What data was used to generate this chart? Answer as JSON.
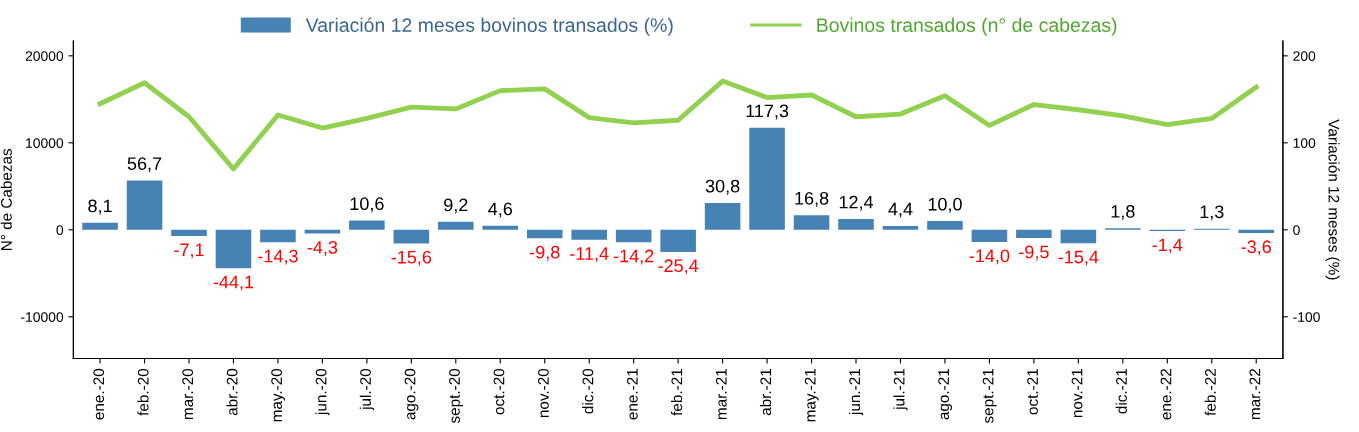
{
  "chart_data": {
    "type": "bar",
    "categories": [
      "ene.-20",
      "feb.-20",
      "mar.-20",
      "abr.-20",
      "may.-20",
      "jun.-20",
      "jul.-20",
      "ago.-20",
      "sept.-20",
      "oct.-20",
      "nov.-20",
      "dic.-20",
      "ene.-21",
      "feb.-21",
      "mar.-21",
      "abr.-21",
      "may.-21",
      "jun.-21",
      "jul.-21",
      "ago.-21",
      "sept.-21",
      "oct.-21",
      "nov.-21",
      "dic.-21",
      "ene.-22",
      "feb.-22",
      "mar.-22"
    ],
    "series": [
      {
        "name": "Variación 12 meses bovinos transados (%)",
        "axis": "y2",
        "color": "#4682b4",
        "values": [
          8.1,
          56.7,
          -7.1,
          -44.1,
          -14.3,
          -4.3,
          10.6,
          -15.6,
          9.2,
          4.6,
          -9.8,
          -11.4,
          -14.2,
          -25.4,
          30.8,
          117.3,
          16.8,
          12.4,
          4.4,
          10.0,
          -14.0,
          -9.5,
          -15.4,
          1.8,
          -1.4,
          1.3,
          -3.6
        ],
        "value_labels": [
          "8,1",
          "56,7",
          "-7,1",
          "-44,1",
          "-14,3",
          "-4,3",
          "10,6",
          "-15,6",
          "9,2",
          "4,6",
          "-9,8",
          "-11,4",
          "-14,2",
          "-25,4",
          "30,8",
          "117,3",
          "16,8",
          "12,4",
          "4,4",
          "10,0",
          "-14,0",
          "-9,5",
          "-15,4",
          "1,8",
          "-1,4",
          "1,3",
          "-3,6"
        ]
      },
      {
        "name": "Bovinos transados (n° de cabezas)",
        "type": "line",
        "color": "#92d050",
        "values": [
          14500,
          16900,
          13000,
          7000,
          13200,
          11700,
          12800,
          14100,
          13900,
          16000,
          16200,
          12900,
          12300,
          12600,
          17100,
          15200,
          15500,
          13000,
          13300,
          15400,
          12000,
          14400,
          13800,
          13100,
          12100,
          12800,
          16400
        ]
      }
    ],
    "ylabel": "N° de Cabezas",
    "y2label": "Variación 12 meses (%)",
    "ylim": [
      -14800,
      21700
    ],
    "yticks": [
      -10000,
      0,
      10000,
      20000
    ],
    "y2lim": [
      -148,
      217
    ],
    "y2ticks": [
      -100,
      0,
      100,
      200
    ],
    "legend": "top",
    "grid": false
  }
}
